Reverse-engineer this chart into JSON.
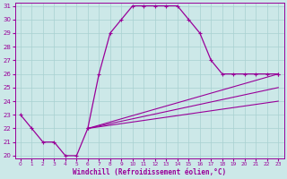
{
  "xlabel": "Windchill (Refroidissement éolien,°C)",
  "x_hours": [
    0,
    1,
    2,
    3,
    4,
    5,
    6,
    7,
    8,
    9,
    10,
    11,
    12,
    13,
    14,
    15,
    16,
    17,
    18,
    19,
    20,
    21,
    22,
    23
  ],
  "curve1": [
    23,
    22,
    21,
    21,
    20,
    20,
    22,
    26,
    29,
    30,
    31,
    31,
    31,
    31,
    31,
    30,
    29,
    27,
    26,
    26,
    26,
    26,
    26,
    26
  ],
  "curve2_x": [
    6,
    23
  ],
  "curve2_y": [
    22,
    26
  ],
  "curve3_x": [
    6,
    23
  ],
  "curve3_y": [
    22,
    25
  ],
  "curve4_x": [
    6,
    23
  ],
  "curve4_y": [
    22,
    24
  ],
  "line_color": "#990099",
  "bg_color": "#cce8e8",
  "grid_color": "#a8d0d0",
  "ylim": [
    20,
    31
  ],
  "xlim": [
    -0.5,
    23.5
  ],
  "yticks": [
    20,
    21,
    22,
    23,
    24,
    25,
    26,
    27,
    28,
    29,
    30,
    31
  ],
  "xticks": [
    0,
    1,
    2,
    3,
    4,
    5,
    6,
    7,
    8,
    9,
    10,
    11,
    12,
    13,
    14,
    15,
    16,
    17,
    18,
    19,
    20,
    21,
    22,
    23
  ],
  "figsize": [
    3.2,
    2.0
  ],
  "dpi": 100
}
